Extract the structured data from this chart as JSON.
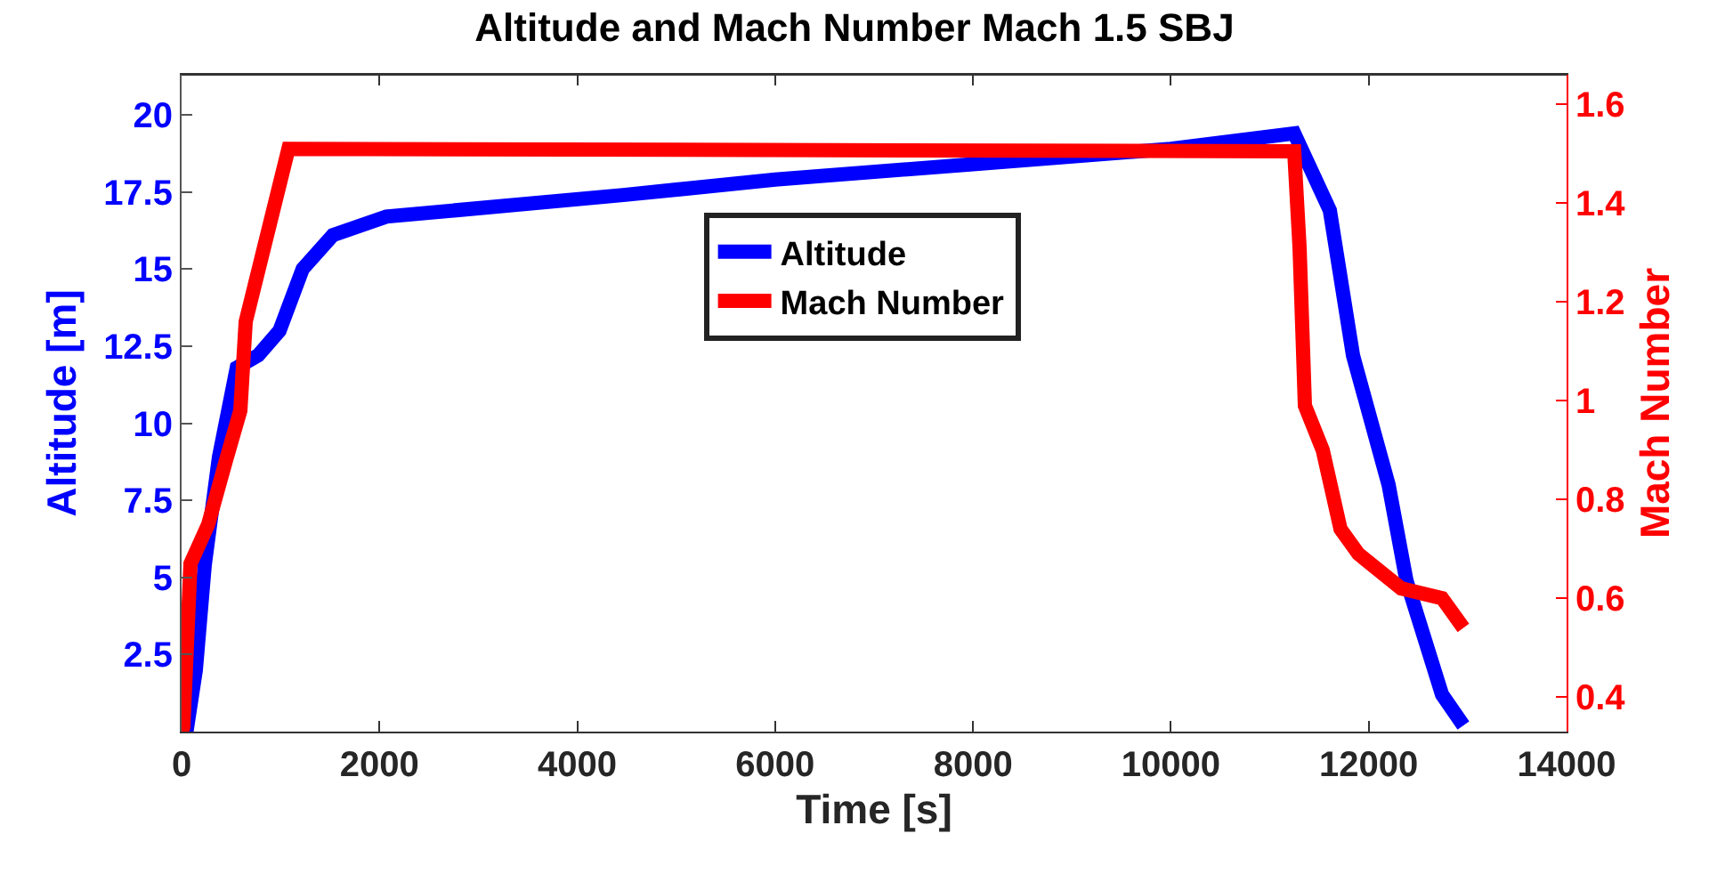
{
  "chart_data": {
    "type": "line",
    "title": "Altitude and Mach Number Mach 1.5 SBJ",
    "xlabel": "Time [s]",
    "ylabel": "Altitude [m]",
    "y2label": "Mach Number",
    "xlim": [
      0,
      14000
    ],
    "xticks": [
      0,
      2000,
      4000,
      6000,
      8000,
      10000,
      12000,
      14000
    ],
    "ylim": [
      0,
      21.3
    ],
    "yticks": [
      2.5,
      5,
      7.5,
      10,
      12.5,
      15,
      17.5,
      20
    ],
    "y2lim": [
      0.33,
      1.66
    ],
    "y2ticks": [
      0.4,
      0.6,
      0.8,
      1,
      1.2,
      1.4,
      1.6
    ],
    "grid": false,
    "legend": "top",
    "line_style": "solid",
    "marker": "none",
    "series": [
      {
        "name": "Altitude",
        "color": "#0000ff",
        "x": [
          0,
          54,
          144,
          234,
          378,
          558,
          774,
          990,
          1224,
          1530,
          2070,
          4463,
          6000,
          8000,
          10000,
          11247,
          11607,
          11841,
          12201,
          12381,
          12741,
          12957
        ],
        "values": [
          0,
          0.1,
          2,
          5.4,
          8.9,
          11.8,
          12.2,
          13,
          15,
          16.1,
          16.7,
          17.4,
          17.9,
          18.4,
          18.9,
          19.4,
          16.9,
          12.2,
          8,
          4.9,
          1.2,
          0.2
        ]
      },
      {
        "name": "Mach Number",
        "color": "#ff0000",
        "axis": "y2",
        "x": [
          0,
          18,
          90,
          270,
          450,
          594,
          648,
          1080,
          11247,
          11301,
          11355,
          11535,
          11715,
          11895,
          12327,
          12741,
          12957
        ],
        "values": [
          0.33,
          0.34,
          0.67,
          0.75,
          0.88,
          0.98,
          1.16,
          1.51,
          1.505,
          1.31,
          0.99,
          0.9,
          0.74,
          0.69,
          0.62,
          0.6,
          0.54
        ]
      }
    ]
  }
}
